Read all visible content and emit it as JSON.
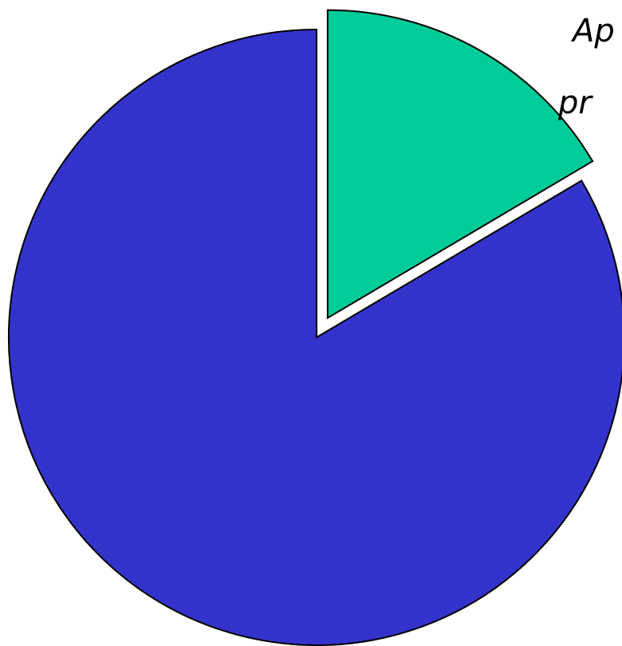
{
  "chart_data": {
    "type": "pie",
    "start_angle_deg": 0,
    "direction": "clockwise",
    "exploded_slice_index": 0,
    "slices": [
      {
        "label": "Ap… pr…",
        "label_lines": [
          "Ap",
          "pr"
        ],
        "value": 16.5,
        "color": "#00CC99"
      },
      {
        "label": "",
        "label_lines": [],
        "value": 83.5,
        "color": "#3333CC"
      }
    ],
    "stroke_color": "#000000"
  }
}
